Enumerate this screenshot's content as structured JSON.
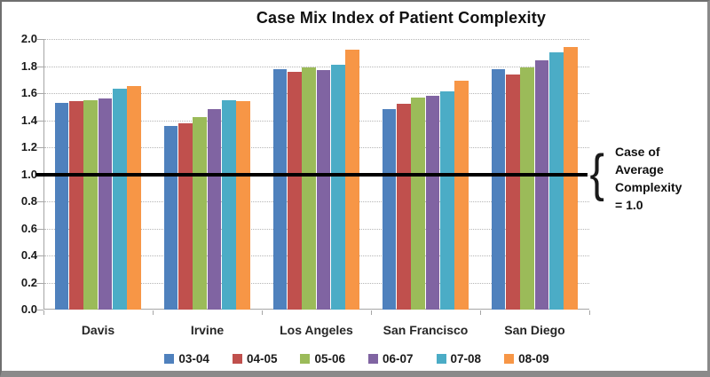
{
  "title": "Case Mix Index of Patient Complexity",
  "annotation": {
    "brace_glyph": "{",
    "lines": [
      "Case of",
      "Average",
      "Complexity",
      "= 1.0"
    ]
  },
  "colors": {
    "series_blue": "#4F81BD",
    "series_red": "#C0504D",
    "series_green": "#9BBB59",
    "series_purple": "#8064A2",
    "series_teal": "#4BACC6",
    "series_orange": "#F79646",
    "reference_line": "#000000",
    "gridline": "#b5b5b5"
  },
  "chart_data": {
    "type": "bar",
    "title": "Case Mix Index of Patient Complexity",
    "categories": [
      "Davis",
      "Irvine",
      "Los Angeles",
      "San Francisco",
      "San Diego"
    ],
    "series": [
      {
        "name": "03-04",
        "color": "#4F81BD",
        "values": [
          1.53,
          1.36,
          1.78,
          1.48,
          1.78
        ]
      },
      {
        "name": "04-05",
        "color": "#C0504D",
        "values": [
          1.54,
          1.38,
          1.76,
          1.52,
          1.74
        ]
      },
      {
        "name": "05-06",
        "color": "#9BBB59",
        "values": [
          1.55,
          1.42,
          1.79,
          1.57,
          1.79
        ]
      },
      {
        "name": "06-07",
        "color": "#8064A2",
        "values": [
          1.56,
          1.48,
          1.77,
          1.58,
          1.84
        ]
      },
      {
        "name": "07-08",
        "color": "#4BACC6",
        "values": [
          1.63,
          1.55,
          1.81,
          1.61,
          1.9
        ]
      },
      {
        "name": "08-09",
        "color": "#F79646",
        "values": [
          1.65,
          1.54,
          1.92,
          1.69,
          1.94
        ]
      }
    ],
    "xlabel": "",
    "ylabel": "",
    "ylim": [
      0.0,
      2.0
    ],
    "ytick_step": 0.2,
    "yticks": [
      "0.0",
      "0.2",
      "0.4",
      "0.6",
      "0.8",
      "1.0",
      "1.2",
      "1.4",
      "1.6",
      "1.8",
      "2.0"
    ],
    "grid": true,
    "legend_position": "bottom",
    "reference_line": {
      "value": 1.0,
      "label": "Case of Average Complexity = 1.0"
    }
  }
}
